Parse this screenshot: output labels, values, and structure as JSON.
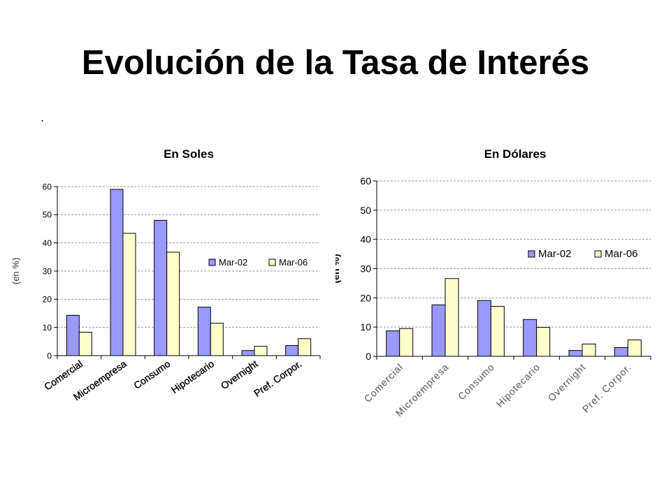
{
  "slide": {
    "title": "Evolución de la Tasa de Interés",
    "bullet": "."
  },
  "colors": {
    "series1": "#9999ff",
    "series2": "#ffffcc",
    "grid": "#999999"
  },
  "chart_data": [
    {
      "type": "bar",
      "title": "En Soles",
      "ylabel": "(en %)",
      "xlabel": "",
      "ylim": [
        0,
        60
      ],
      "yticks": [
        0,
        10,
        20,
        30,
        40,
        50,
        60
      ],
      "grid": true,
      "legend_position": "right",
      "categories": [
        "Comercial",
        "Microempresa",
        "Consumo",
        "Hipotecario",
        "Overnight",
        "Pref. Corpor."
      ],
      "series": [
        {
          "name": "Mar-02",
          "values": [
            14.3,
            59.0,
            48.0,
            17.2,
            1.8,
            3.6
          ]
        },
        {
          "name": "Mar-06",
          "values": [
            8.3,
            43.4,
            36.7,
            11.5,
            3.3,
            6.0
          ]
        }
      ]
    },
    {
      "type": "bar",
      "title": "En Dólares",
      "ylabel": "(en %)",
      "xlabel": "",
      "ylim": [
        0,
        60
      ],
      "yticks": [
        0,
        10,
        20,
        30,
        40,
        50,
        60
      ],
      "grid": true,
      "legend_position": "right",
      "categories": [
        "Comercial",
        "Microempresa",
        "Consumo",
        "Hipotecario",
        "Overnight",
        "Pref. Corpor."
      ],
      "series": [
        {
          "name": "Mar-02",
          "values": [
            8.7,
            17.6,
            19.1,
            12.6,
            2.0,
            3.0
          ]
        },
        {
          "name": "Mar-06",
          "values": [
            9.5,
            26.6,
            17.1,
            9.9,
            4.2,
            5.6
          ]
        }
      ]
    }
  ]
}
